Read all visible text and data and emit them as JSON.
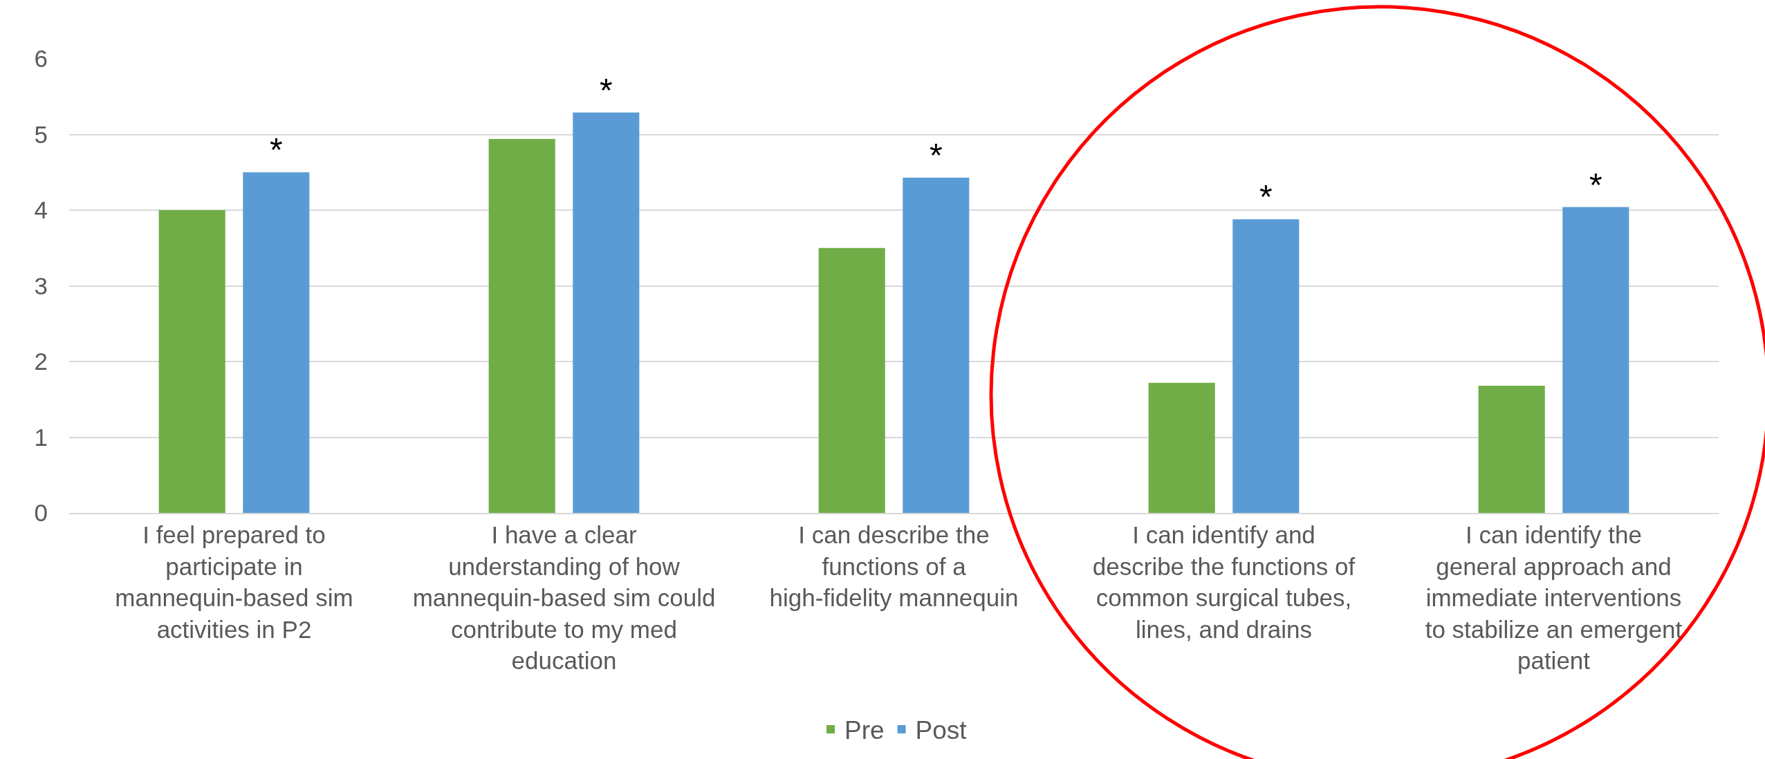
{
  "chart_data": {
    "type": "bar",
    "categories": [
      "I feel prepared to participate in mannequin-based sim activities in P2",
      "I have a clear understanding of how mannequin-based sim could contribute to my med education",
      "I can describe the functions of a high-fidelity mannequin",
      "I can identify and describe the functions of common surgical tubes, lines, and drains",
      "I can identify the general approach and immediate interventions to stabilize an emergent patient"
    ],
    "series": [
      {
        "name": "Pre",
        "color": "#70ad47",
        "values": [
          4.0,
          4.94,
          3.5,
          1.72,
          1.68
        ]
      },
      {
        "name": "Post",
        "color": "#5b9bd5",
        "values": [
          4.5,
          5.29,
          4.43,
          3.88,
          4.04
        ]
      }
    ],
    "ylim": [
      0,
      6
    ],
    "yticks": [
      0,
      1,
      2,
      3,
      4,
      5,
      6
    ],
    "grid": "y",
    "legend": "bottom",
    "annotations": [
      "*",
      "*",
      "*",
      "*",
      "*"
    ]
  }
}
